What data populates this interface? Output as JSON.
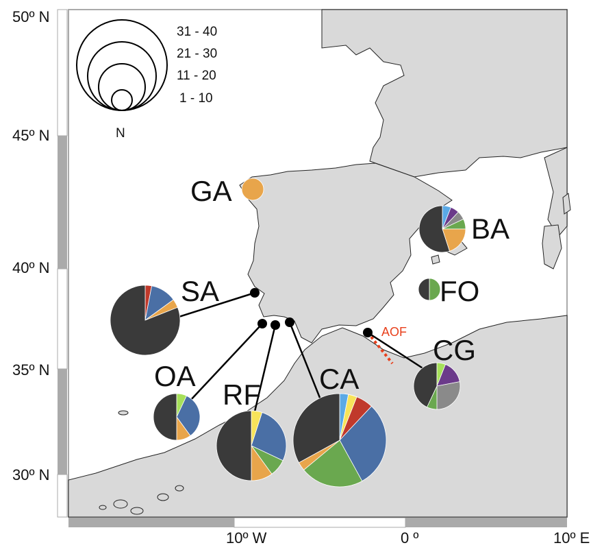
{
  "axes": {
    "lat_labels": [
      "50º N",
      "45º N",
      "40º N",
      "35º N",
      "30º N"
    ],
    "lon_labels": [
      "10º W",
      "0 º",
      "10º E"
    ]
  },
  "legend": {
    "title": "N",
    "classes": [
      "31 - 40",
      "21 - 30",
      "11 - 20",
      "1 - 10"
    ]
  },
  "front_label": "AOF",
  "colors": {
    "land": "#d9d9d9",
    "sea": "#ffffff",
    "front": "#e8401c",
    "dark": "#3a3a3a",
    "blue": "#4a6fa5",
    "green": "#6aa84f",
    "orange": "#e8a54b",
    "yellow": "#f7e35a",
    "red": "#c0392b",
    "lightblue": "#5aa9e6",
    "purple": "#6b3a8a",
    "lime": "#a6e05a",
    "grey": "#8a8a8a"
  },
  "sites": [
    {
      "code": "GA",
      "size_class": "1 - 10",
      "slices": [
        {
          "color": "#e8a54b",
          "value": 1
        }
      ]
    },
    {
      "code": "SA",
      "size_class": "21 - 30",
      "slices": [
        {
          "color": "#c0392b",
          "value": 0.03
        },
        {
          "color": "#4a6fa5",
          "value": 0.12
        },
        {
          "color": "#e8a54b",
          "value": 0.04
        },
        {
          "color": "#3a3a3a",
          "value": 0.81
        }
      ]
    },
    {
      "code": "BA",
      "size_class": "11 - 20",
      "slices": [
        {
          "color": "#5aa9e6",
          "value": 0.06
        },
        {
          "color": "#6b3a8a",
          "value": 0.06
        },
        {
          "color": "#8a8a8a",
          "value": 0.06
        },
        {
          "color": "#6aa84f",
          "value": 0.07
        },
        {
          "color": "#e8a54b",
          "value": 0.2
        },
        {
          "color": "#3a3a3a",
          "value": 0.55
        }
      ]
    },
    {
      "code": "FO",
      "size_class": "1 - 10",
      "slices": [
        {
          "color": "#6aa84f",
          "value": 0.5
        },
        {
          "color": "#3a3a3a",
          "value": 0.5
        }
      ]
    },
    {
      "code": "CG",
      "size_class": "11 - 20",
      "slices": [
        {
          "color": "#a6e05a",
          "value": 0.06
        },
        {
          "color": "#6b3a8a",
          "value": 0.16
        },
        {
          "color": "#8a8a8a",
          "value": 0.28
        },
        {
          "color": "#6aa84f",
          "value": 0.07
        },
        {
          "color": "#3a3a3a",
          "value": 0.43
        }
      ]
    },
    {
      "code": "OA",
      "size_class": "11 - 20",
      "slices": [
        {
          "color": "#a6e05a",
          "value": 0.07
        },
        {
          "color": "#4a6fa5",
          "value": 0.33
        },
        {
          "color": "#e8a54b",
          "value": 0.1
        },
        {
          "color": "#3a3a3a",
          "value": 0.5
        }
      ]
    },
    {
      "code": "RF",
      "size_class": "21 - 30",
      "slices": [
        {
          "color": "#f7e35a",
          "value": 0.05
        },
        {
          "color": "#4a6fa5",
          "value": 0.27
        },
        {
          "color": "#6aa84f",
          "value": 0.08
        },
        {
          "color": "#e8a54b",
          "value": 0.1
        },
        {
          "color": "#3a3a3a",
          "value": 0.5
        }
      ]
    },
    {
      "code": "CA",
      "size_class": "31 - 40",
      "slices": [
        {
          "color": "#5aa9e6",
          "value": 0.03
        },
        {
          "color": "#f7e35a",
          "value": 0.03
        },
        {
          "color": "#c0392b",
          "value": 0.06
        },
        {
          "color": "#4a6fa5",
          "value": 0.3
        },
        {
          "color": "#6aa84f",
          "value": 0.22
        },
        {
          "color": "#e8a54b",
          "value": 0.03
        },
        {
          "color": "#3a3a3a",
          "value": 0.33
        }
      ]
    }
  ]
}
